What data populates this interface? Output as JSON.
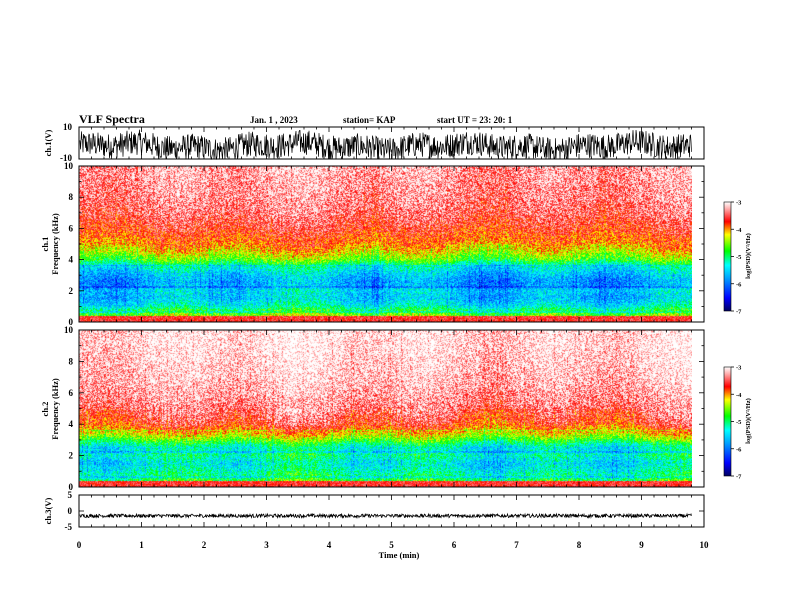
{
  "header": {
    "title": "VLF Spectra",
    "date": "Jan. 1 , 2023",
    "station": "station= KAP",
    "start": "start UT =  23: 20: 1"
  },
  "colors": {
    "spectrogram_scale": [
      "#000080",
      "#0000ff",
      "#00a0ff",
      "#00ffff",
      "#00ff00",
      "#ffff00",
      "#ff0000",
      "#ffffff"
    ],
    "trace": "#000000"
  },
  "chart_data": [
    {
      "id": "ch1-waveform",
      "type": "line",
      "ylabel": "ch.1(V)",
      "ylim": [
        -10,
        10
      ],
      "yticks": [
        "10",
        "-10"
      ],
      "xlim": [
        0,
        10
      ],
      "description_values": {
        "mean": 0,
        "envelope_upper": [
          1,
          8
        ],
        "envelope_lower": [
          -8,
          -2
        ]
      }
    },
    {
      "id": "ch1-spectrogram",
      "type": "heatmap",
      "ylabel": "ch.1\nFrequency (kHz)",
      "ylim": [
        0,
        10
      ],
      "yticks": [
        "0",
        "2",
        "4",
        "6",
        "8",
        "10"
      ],
      "xlim": [
        0,
        10
      ],
      "data_extent_min": 9.8,
      "colorbar": {
        "label": "log(PSD)(V²/Hz)",
        "range": [
          -7,
          -3
        ],
        "ticks": [
          "-3",
          "-4",
          "-5",
          "-6",
          "-7"
        ]
      },
      "profile_khz": [
        0,
        0.5,
        1,
        1.5,
        2,
        2.5,
        3,
        3.5,
        4,
        4.5,
        5,
        6,
        7,
        8,
        9,
        10
      ],
      "profile_log_psd": [
        -4.2,
        -4.6,
        -5.3,
        -5.6,
        -5.5,
        -5.8,
        -5.6,
        -5.3,
        -4.6,
        -4.2,
        -3.9,
        -3.6,
        -3.4,
        -3.3,
        -3.25,
        -3.2
      ]
    },
    {
      "id": "ch2-spectrogram",
      "type": "heatmap",
      "ylabel": "ch.2\nFrequency (kHz)",
      "ylim": [
        0,
        10
      ],
      "yticks": [
        "0",
        "2",
        "4",
        "6",
        "8",
        "10"
      ],
      "xlim": [
        0,
        10
      ],
      "data_extent_min": 9.8,
      "colorbar": {
        "label": "log(PSD)(V²/Hz)",
        "range": [
          -7,
          -3
        ],
        "ticks": [
          "-3",
          "-4",
          "-5",
          "-6",
          "-7"
        ]
      },
      "profile_khz": [
        0,
        0.5,
        1,
        1.5,
        2,
        2.5,
        3,
        3.5,
        4,
        5,
        6,
        7,
        8,
        9,
        10
      ],
      "profile_log_psd": [
        -4.5,
        -4.9,
        -5.2,
        -5.4,
        -5.1,
        -5.3,
        -4.6,
        -4.0,
        -3.6,
        -3.35,
        -3.2,
        -3.1,
        -3.05,
        -3.0,
        -3.0
      ]
    },
    {
      "id": "ch3-waveform",
      "type": "line",
      "ylabel": "ch.3(V)",
      "ylim": [
        -5,
        5
      ],
      "yticks": [
        "5",
        "0",
        "-5"
      ],
      "xlim": [
        0,
        10
      ],
      "description_values": {
        "mean": -1.5,
        "envelope": [
          -2,
          -1
        ]
      }
    }
  ],
  "x_axis": {
    "label": "Time (min)",
    "range": [
      0,
      10
    ],
    "ticks": [
      "0",
      "1",
      "2",
      "3",
      "4",
      "5",
      "6",
      "7",
      "8",
      "9",
      "10"
    ]
  }
}
